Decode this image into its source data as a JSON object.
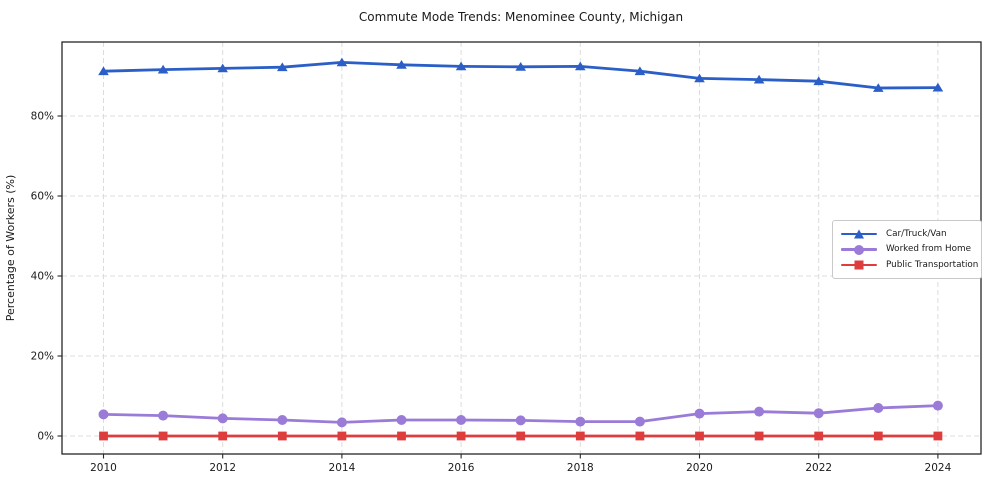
{
  "chart_data": {
    "type": "line",
    "title": "Commute Mode Trends: Menominee County, Michigan",
    "xlabel": "",
    "ylabel": "Percentage of Workers (%)",
    "x": [
      2010,
      2011,
      2012,
      2013,
      2014,
      2015,
      2016,
      2017,
      2018,
      2019,
      2020,
      2021,
      2022,
      2023,
      2024
    ],
    "series": [
      {
        "name": "Car/Truck/Van",
        "color": "#2b5fc7",
        "marker": "triangle",
        "values": [
          91.2,
          91.6,
          91.9,
          92.2,
          93.4,
          92.8,
          92.4,
          92.3,
          92.4,
          91.2,
          89.4,
          89.1,
          88.7,
          87.0,
          87.1
        ]
      },
      {
        "name": "Worked from Home",
        "color": "#9a7bd8",
        "marker": "circle",
        "values": [
          5.4,
          5.1,
          4.4,
          4.0,
          3.4,
          4.0,
          4.0,
          3.9,
          3.6,
          3.6,
          5.6,
          6.1,
          5.7,
          7.0,
          7.6
        ]
      },
      {
        "name": "Public Transportation",
        "color": "#de3d3d",
        "marker": "square",
        "values": [
          0.0,
          0.0,
          0.0,
          0.0,
          0.0,
          0.0,
          0.0,
          0.0,
          0.0,
          0.0,
          0.0,
          0.0,
          0.0,
          0.0,
          0.0
        ]
      }
    ],
    "xticks": [
      2010,
      2012,
      2014,
      2016,
      2018,
      2020,
      2022,
      2024
    ],
    "ytick_values": [
      0,
      20,
      40,
      60,
      80
    ],
    "ytick_labels": [
      "0%",
      "20%",
      "40%",
      "60%",
      "80%"
    ],
    "xlim": [
      2009.3,
      2024.7
    ],
    "ylim": [
      -4.5,
      98.5
    ],
    "grid": "dashed-both-axes",
    "legend_position": "center right"
  }
}
